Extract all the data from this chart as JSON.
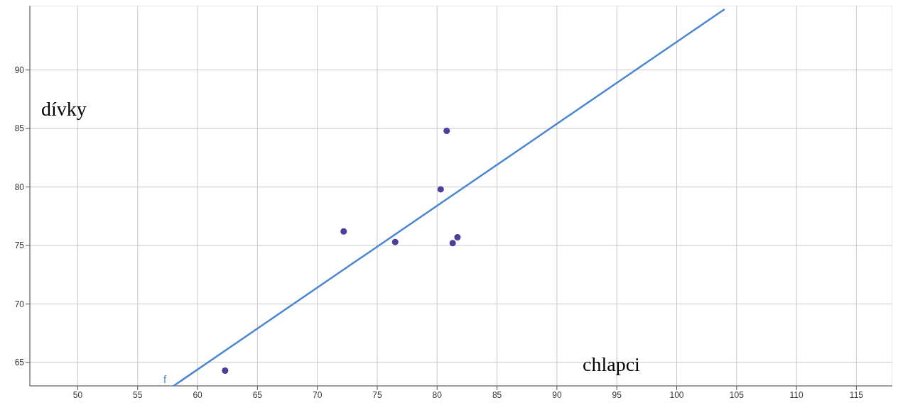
{
  "chart_data": {
    "type": "scatter",
    "xlabel": "chlapci",
    "ylabel": "dívky",
    "xlim": [
      46,
      118
    ],
    "ylim": [
      63,
      95.5
    ],
    "xticks": [
      50,
      55,
      60,
      65,
      70,
      75,
      80,
      85,
      90,
      95,
      100,
      105,
      110,
      115
    ],
    "yticks": [
      65,
      70,
      75,
      80,
      85,
      90
    ],
    "grid": true,
    "series": [
      {
        "marker": "circle",
        "color": "#4b3f9e",
        "x": [
          62.3,
          72.2,
          76.5,
          80.3,
          80.8,
          81.3,
          81.7
        ],
        "values": [
          64.3,
          76.2,
          75.3,
          79.8,
          84.8,
          75.2,
          75.7
        ]
      },
      {
        "type": "line",
        "marker": "none",
        "color": "#4a86d4",
        "x": [
          58,
          104
        ],
        "values": [
          63.0,
          95.2
        ],
        "line_style": "solid"
      }
    ],
    "annotations": [
      "f"
    ]
  }
}
